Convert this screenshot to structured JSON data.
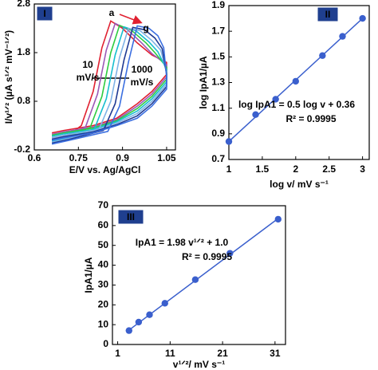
{
  "chart_data": [
    {
      "type": "line",
      "panel_label": "I",
      "xlabel": "E/V vs. Ag/AgCl",
      "ylabel": "I/v¹ᐟ² (µA s¹ᐟ² mV⁻¹ᐟ²)",
      "xlim": [
        0.6,
        1.08
      ],
      "ylim": [
        -0.2,
        2.8
      ],
      "xticks": [
        0.6,
        0.75,
        0.9,
        1.05
      ],
      "yticks": [
        -0.2,
        0.8,
        1.8,
        2.8
      ],
      "annotations": [
        {
          "text": "a",
          "color": "#e02030"
        },
        {
          "text": "g",
          "color": "#2f55c8"
        }
      ],
      "rate_labels": [
        {
          "lines": [
            "10",
            "mV/s"
          ],
          "color": "#e02030"
        },
        {
          "lines": [
            "1000",
            "mV/s"
          ],
          "color": "#2f55c8"
        }
      ],
      "series": [
        {
          "color": "#e02030",
          "x": [
            0.66,
            0.72,
            0.76,
            0.8,
            0.83,
            0.86,
            0.9,
            0.95,
            1.0,
            1.05,
            1.05,
            1.0,
            0.95,
            0.88,
            0.8,
            0.7,
            0.66
          ],
          "y": [
            0.05,
            0.12,
            0.3,
            1.0,
            1.9,
            2.45,
            2.3,
            2.0,
            1.75,
            1.6,
            1.35,
            1.0,
            0.75,
            0.45,
            0.3,
            0.2,
            0.15
          ]
        },
        {
          "color": "#9b59b6",
          "x": [
            0.66,
            0.72,
            0.775,
            0.815,
            0.845,
            0.875,
            0.915,
            0.965,
            1.0,
            1.05,
            1.05,
            1.0,
            0.95,
            0.88,
            0.8,
            0.7,
            0.66
          ],
          "y": [
            0.02,
            0.1,
            0.28,
            0.95,
            1.85,
            2.4,
            2.28,
            2.0,
            1.78,
            1.55,
            1.3,
            0.95,
            0.7,
            0.42,
            0.27,
            0.17,
            0.12
          ]
        },
        {
          "color": "#2ecc40",
          "x": [
            0.66,
            0.72,
            0.79,
            0.83,
            0.86,
            0.89,
            0.93,
            0.98,
            1.01,
            1.05,
            1.05,
            1.0,
            0.95,
            0.88,
            0.8,
            0.7,
            0.66
          ],
          "y": [
            0.0,
            0.08,
            0.26,
            0.9,
            1.8,
            2.36,
            2.26,
            2.0,
            1.8,
            1.5,
            1.25,
            0.9,
            0.65,
            0.4,
            0.25,
            0.15,
            0.1
          ]
        },
        {
          "color": "#17becf",
          "x": [
            0.66,
            0.72,
            0.805,
            0.845,
            0.875,
            0.905,
            0.945,
            0.99,
            1.02,
            1.05,
            1.05,
            1.0,
            0.95,
            0.88,
            0.8,
            0.7,
            0.66
          ],
          "y": [
            -0.02,
            0.06,
            0.24,
            0.85,
            1.75,
            2.33,
            2.25,
            2.02,
            1.82,
            1.45,
            1.2,
            0.85,
            0.6,
            0.38,
            0.22,
            0.13,
            0.08
          ]
        },
        {
          "color": "#7fb3e6",
          "x": [
            0.66,
            0.72,
            0.82,
            0.86,
            0.89,
            0.92,
            0.96,
            1.0,
            1.03,
            1.05,
            1.05,
            1.0,
            0.95,
            0.88,
            0.8,
            0.7,
            0.66
          ],
          "y": [
            -0.04,
            0.04,
            0.22,
            0.8,
            1.7,
            2.3,
            2.25,
            2.05,
            1.85,
            1.4,
            1.15,
            0.8,
            0.55,
            0.35,
            0.2,
            0.1,
            0.05
          ]
        },
        {
          "color": "#1f3a93",
          "x": [
            0.66,
            0.72,
            0.835,
            0.875,
            0.905,
            0.935,
            0.975,
            1.01,
            1.035,
            1.05,
            1.05,
            1.0,
            0.95,
            0.88,
            0.8,
            0.7,
            0.66
          ],
          "y": [
            -0.06,
            0.02,
            0.2,
            0.75,
            1.65,
            2.32,
            2.27,
            2.1,
            1.88,
            1.35,
            1.1,
            0.75,
            0.5,
            0.32,
            0.17,
            0.07,
            0.02
          ]
        },
        {
          "color": "#3b6fe0",
          "x": [
            0.66,
            0.72,
            0.85,
            0.89,
            0.92,
            0.95,
            0.99,
            1.02,
            1.04,
            1.05,
            1.05,
            1.0,
            0.95,
            0.88,
            0.8,
            0.7,
            0.66
          ],
          "y": [
            -0.08,
            0.0,
            0.18,
            0.7,
            1.6,
            2.35,
            2.3,
            2.15,
            1.9,
            1.3,
            1.05,
            0.7,
            0.45,
            0.3,
            0.15,
            0.05,
            0.0
          ]
        }
      ]
    },
    {
      "type": "scatter",
      "panel_label": "II",
      "xlabel": "log v/ mV s⁻¹",
      "ylabel": "log IpA1/µA",
      "xlim": [
        1,
        3.1
      ],
      "ylim": [
        0.7,
        1.9
      ],
      "xticks": [
        1,
        1.5,
        2,
        2.5,
        3
      ],
      "yticks": [
        0.7,
        0.9,
        1.1,
        1.3,
        1.5,
        1.7,
        1.9
      ],
      "equation": "log IpA1 = 0.5 log v + 0.36",
      "r2": "R² = 0.9995",
      "series": [
        {
          "color": "#3a5fcd",
          "x": [
            1,
            1.4,
            1.7,
            2,
            2.4,
            2.7,
            3
          ],
          "y": [
            0.84,
            1.05,
            1.17,
            1.31,
            1.51,
            1.66,
            1.8
          ]
        }
      ],
      "fit": {
        "color": "#3a5fcd",
        "x": [
          1,
          3
        ],
        "y": [
          0.84,
          1.8
        ]
      }
    },
    {
      "type": "scatter",
      "panel_label": "III",
      "xlabel": "v¹ᐟ²/ mV s⁻¹",
      "ylabel": "IpA1/µA",
      "xlim": [
        0,
        33
      ],
      "ylim": [
        0,
        70
      ],
      "xticks": [
        1,
        11,
        21,
        31
      ],
      "yticks": [
        0,
        10,
        20,
        30,
        40,
        50,
        60,
        70
      ],
      "equation": "IpA1 = 1.98 v¹ᐟ² + 1.0",
      "r2": "R² = 0.9995",
      "series": [
        {
          "color": "#3a5fcd",
          "x": [
            3.16,
            5,
            7.07,
            10,
            15.8,
            22.4,
            31.6
          ],
          "y": [
            7,
            11.3,
            15,
            20.8,
            32.7,
            46,
            63.2
          ]
        }
      ],
      "fit": {
        "color": "#3a5fcd",
        "x": [
          3.16,
          31.6
        ],
        "y": [
          7.26,
          63.57
        ]
      }
    }
  ]
}
